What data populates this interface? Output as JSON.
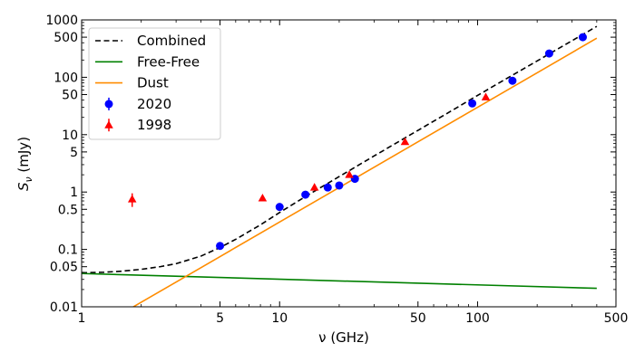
{
  "chart_data": {
    "type": "scatter",
    "x_scale": "log",
    "y_scale": "log",
    "xlim": [
      1,
      500
    ],
    "ylim": [
      0.01,
      1000
    ],
    "xlabel": "ν (GHz)",
    "ylabel": "S_ν (mJy)",
    "ylabel_main": "S",
    "ylabel_sub": "ν",
    "ylabel_rest": " (mJy)",
    "x_ticks": [
      {
        "value": 1,
        "label": "1"
      },
      {
        "value": 5,
        "label": "5"
      },
      {
        "value": 10,
        "label": "10"
      },
      {
        "value": 50,
        "label": "50"
      },
      {
        "value": 100,
        "label": "100"
      },
      {
        "value": 500,
        "label": "500"
      }
    ],
    "y_ticks": [
      {
        "value": 0.01,
        "label": "0.01"
      },
      {
        "value": 0.05,
        "label": "0.05"
      },
      {
        "value": 0.1,
        "label": "0.1"
      },
      {
        "value": 0.5,
        "label": "0.5"
      },
      {
        "value": 1,
        "label": "1"
      },
      {
        "value": 5,
        "label": "5"
      },
      {
        "value": 10,
        "label": "10"
      },
      {
        "value": 50,
        "label": "50"
      },
      {
        "value": 100,
        "label": "100"
      },
      {
        "value": 500,
        "label": "500"
      },
      {
        "value": 1000,
        "label": "1000"
      }
    ],
    "legend": {
      "position": "upper-left",
      "entries": [
        {
          "label": "Combined",
          "kind": "dashed-line",
          "color": "#000000"
        },
        {
          "label": "Free-Free",
          "kind": "line",
          "color": "#008000"
        },
        {
          "label": "Dust",
          "kind": "line",
          "color": "#ff8c00"
        },
        {
          "label": "2020",
          "kind": "circle",
          "color": "#0000ff"
        },
        {
          "label": "1998",
          "kind": "triangle",
          "color": "#ff0000"
        }
      ]
    },
    "series": [
      {
        "name": "Combined",
        "kind": "line",
        "style": "dashed",
        "color": "#000000",
        "x": [
          1,
          1.3,
          1.6,
          2,
          2.5,
          3,
          4,
          5,
          6,
          8,
          10,
          13,
          16,
          20,
          25,
          30,
          40,
          50,
          70,
          100,
          150,
          200,
          300,
          400
        ],
        "y": [
          0.0392,
          0.04,
          0.0418,
          0.045,
          0.0501,
          0.0564,
          0.0763,
          0.108,
          0.15,
          0.268,
          0.44,
          0.769,
          1.18,
          1.86,
          2.93,
          4.25,
          7.59,
          11.9,
          23.4,
          48.3,
          109,
          193,
          434,
          771
        ]
      },
      {
        "name": "Free-Free",
        "kind": "line",
        "style": "solid",
        "color": "#008000",
        "x": [
          1,
          400
        ],
        "y": [
          0.038,
          0.021
        ]
      },
      {
        "name": "Dust",
        "kind": "line",
        "style": "solid",
        "color": "#ff8c00",
        "x": [
          1.8,
          2,
          3,
          5,
          10,
          20,
          50,
          100,
          200,
          400
        ],
        "y": [
          0.00972,
          0.012,
          0.027,
          0.075,
          0.3,
          1.2,
          7.5,
          30,
          120,
          480
        ],
        "label": ""
      },
      {
        "name": "2020",
        "kind": "points",
        "marker": "circle",
        "color": "#0000ff",
        "x": [
          5,
          10,
          13.5,
          17.5,
          20,
          24,
          94,
          150,
          230,
          340
        ],
        "y": [
          0.115,
          0.55,
          0.9,
          1.2,
          1.3,
          1.7,
          35,
          87,
          260,
          500
        ],
        "y_err": [
          0.01,
          0.08,
          0.06,
          0.08,
          0.08,
          0.1,
          2,
          5,
          15,
          30
        ]
      },
      {
        "name": "1998",
        "kind": "points",
        "marker": "triangle",
        "color": "#ff0000",
        "x": [
          1.8,
          8.2,
          15,
          22.5,
          43,
          110
        ],
        "y": [
          0.75,
          0.78,
          1.2,
          2.0,
          7.5,
          45
        ],
        "y_err": [
          0.2,
          0.05,
          0.08,
          0.1,
          0.3,
          3
        ]
      }
    ]
  }
}
